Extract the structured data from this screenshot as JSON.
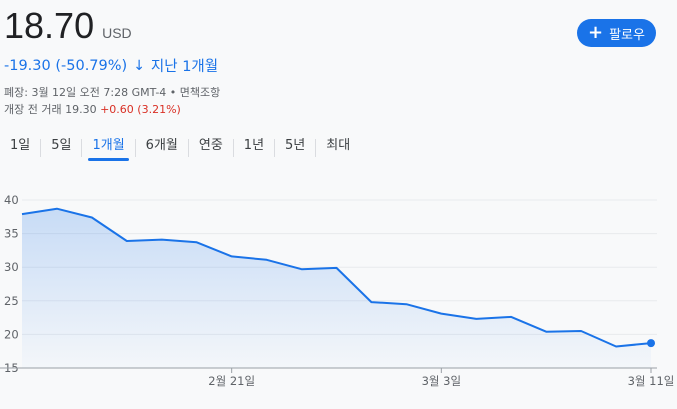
{
  "quote": {
    "price": "18.70",
    "currency": "USD",
    "change": "-19.30 (-50.79%)",
    "change_arrow": "↓",
    "period_label": "지난 1개월",
    "close_info": "폐장: 3월 12일 오전 7:28 GMT-4 • 면책조항",
    "premarket_prefix": "개장 전 거래 19.30",
    "premarket_change": "+0.60 (3.21%)"
  },
  "follow": {
    "icon": "plus-icon",
    "label": "팔로우"
  },
  "tabs": [
    {
      "label": "1일"
    },
    {
      "label": "5일"
    },
    {
      "label": "1개월"
    },
    {
      "label": "6개월"
    },
    {
      "label": "연중"
    },
    {
      "label": "1년"
    },
    {
      "label": "5년"
    },
    {
      "label": "최대"
    }
  ],
  "active_tab": "1개월",
  "chart_data": {
    "type": "area",
    "title": "",
    "xlabel": "",
    "ylabel": "",
    "ylim": [
      15,
      40
    ],
    "yticks": [
      15,
      20,
      25,
      30,
      35,
      40
    ],
    "xtick_labels": [
      "2월 21일",
      "3월 3일",
      "3월 11일"
    ],
    "grid": true,
    "line_color": "#1a73e8",
    "series": [
      {
        "x": [
          "2월 12일",
          "2월 13일",
          "2월 14일",
          "2월 18일",
          "2월 19일",
          "2월 20일",
          "2월 21일",
          "2월 24일",
          "2월 25일",
          "2월 26일",
          "2월 27일",
          "2월 28일",
          "3월 3일",
          "3월 4일",
          "3월 5일",
          "3월 6일",
          "3월 7일",
          "3월 10일",
          "3월 11일"
        ],
        "values": [
          37.9,
          38.7,
          37.4,
          33.9,
          34.1,
          33.7,
          31.6,
          31.1,
          29.7,
          29.9,
          24.8,
          24.5,
          23.1,
          22.3,
          22.6,
          20.4,
          20.5,
          18.2,
          18.7
        ]
      }
    ]
  }
}
